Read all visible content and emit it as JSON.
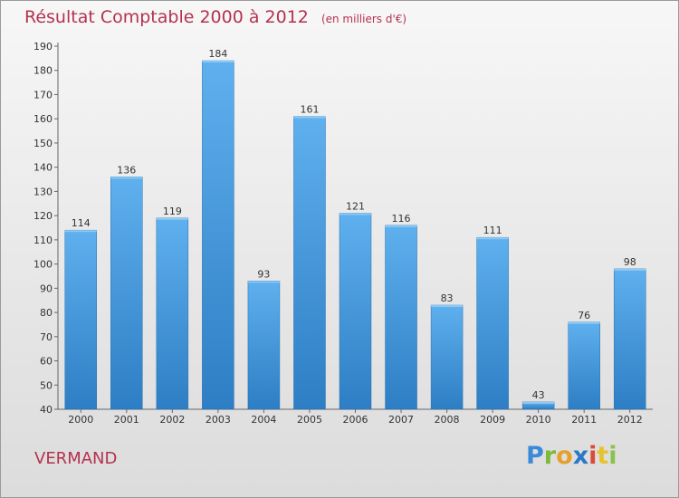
{
  "chart_data": {
    "type": "bar",
    "title": "Résultat Comptable 2000 à 2012",
    "subtitle": "(en milliers d'€)",
    "categories": [
      "2000",
      "2001",
      "2002",
      "2003",
      "2004",
      "2005",
      "2006",
      "2007",
      "2008",
      "2009",
      "2010",
      "2011",
      "2012"
    ],
    "values": [
      114,
      136,
      119,
      184,
      93,
      161,
      121,
      116,
      83,
      111,
      43,
      76,
      98
    ],
    "ylim": [
      40,
      190
    ],
    "yticks": [
      40,
      50,
      60,
      70,
      80,
      90,
      100,
      110,
      120,
      130,
      140,
      150,
      160,
      170,
      180,
      190
    ],
    "grid": false,
    "bar_color": "#3a8fd6"
  },
  "footer": {
    "place": "VERMAND"
  },
  "logo": {
    "letters": [
      "P",
      "r",
      "o",
      "x",
      "i",
      "t",
      "i"
    ],
    "colors": [
      "#3b8ad8",
      "#7cba3a",
      "#e6a12b",
      "#2a78c8",
      "#d94c3a",
      "#e6c22b",
      "#8bc34a"
    ]
  }
}
